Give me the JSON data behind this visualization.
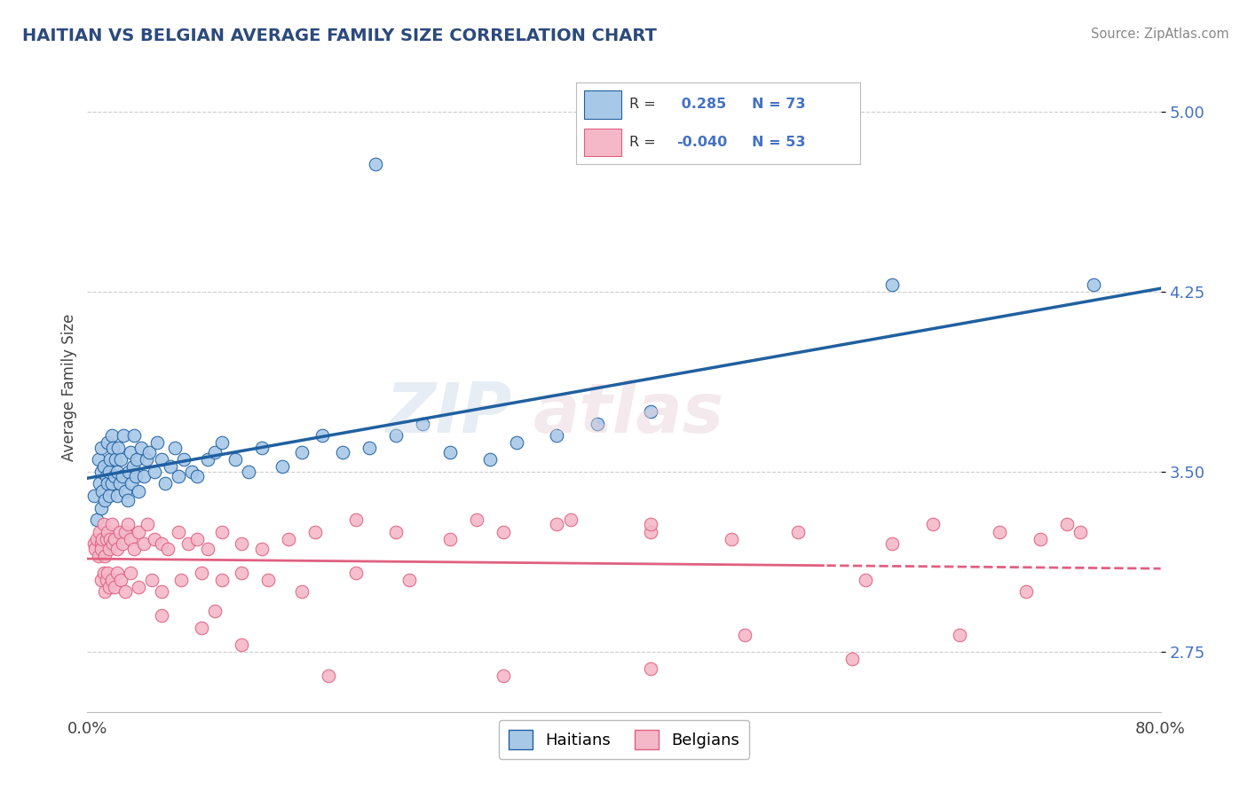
{
  "title": "HAITIAN VS BELGIAN AVERAGE FAMILY SIZE CORRELATION CHART",
  "source": "Source: ZipAtlas.com",
  "ylabel": "Average Family Size",
  "xlim": [
    0.0,
    0.8
  ],
  "ylim": [
    2.5,
    5.2
  ],
  "yticks": [
    2.75,
    3.5,
    4.25,
    5.0
  ],
  "blue_color": "#a8c8e8",
  "pink_color": "#f4b8c8",
  "blue_line_color": "#2060a0",
  "pink_line_color": "#e06080",
  "label_color": "#4472c4",
  "r_blue": 0.285,
  "n_blue": 73,
  "r_pink": -0.04,
  "n_pink": 53,
  "legend_labels": [
    "Haitians",
    "Belgians"
  ],
  "haitian_x": [
    0.005,
    0.007,
    0.008,
    0.009,
    0.01,
    0.01,
    0.01,
    0.011,
    0.012,
    0.013,
    0.014,
    0.015,
    0.015,
    0.016,
    0.016,
    0.017,
    0.018,
    0.018,
    0.019,
    0.02,
    0.021,
    0.022,
    0.022,
    0.023,
    0.024,
    0.025,
    0.026,
    0.027,
    0.028,
    0.03,
    0.031,
    0.032,
    0.033,
    0.034,
    0.035,
    0.036,
    0.037,
    0.038,
    0.04,
    0.042,
    0.044,
    0.046,
    0.05,
    0.052,
    0.055,
    0.058,
    0.062,
    0.065,
    0.068,
    0.072,
    0.078,
    0.082,
    0.09,
    0.095,
    0.1,
    0.11,
    0.12,
    0.13,
    0.145,
    0.16,
    0.175,
    0.19,
    0.21,
    0.23,
    0.25,
    0.27,
    0.3,
    0.32,
    0.35,
    0.38,
    0.42,
    0.6,
    0.75
  ],
  "haitian_y": [
    3.4,
    3.3,
    3.55,
    3.45,
    3.5,
    3.6,
    3.35,
    3.42,
    3.52,
    3.38,
    3.48,
    3.45,
    3.62,
    3.5,
    3.4,
    3.55,
    3.65,
    3.45,
    3.6,
    3.48,
    3.55,
    3.4,
    3.5,
    3.6,
    3.45,
    3.55,
    3.48,
    3.65,
    3.42,
    3.38,
    3.5,
    3.58,
    3.45,
    3.52,
    3.65,
    3.48,
    3.55,
    3.42,
    3.6,
    3.48,
    3.55,
    3.58,
    3.5,
    3.62,
    3.55,
    3.45,
    3.52,
    3.6,
    3.48,
    3.55,
    3.5,
    3.48,
    3.55,
    3.58,
    3.62,
    3.55,
    3.5,
    3.6,
    3.52,
    3.58,
    3.65,
    3.58,
    3.6,
    3.65,
    3.7,
    3.58,
    3.55,
    3.62,
    3.65,
    3.7,
    3.75,
    4.28,
    4.28
  ],
  "haitian_outlier_x": [
    0.215
  ],
  "haitian_outlier_y": [
    4.78
  ],
  "belgian_x": [
    0.005,
    0.006,
    0.007,
    0.008,
    0.009,
    0.01,
    0.01,
    0.011,
    0.012,
    0.013,
    0.014,
    0.015,
    0.016,
    0.017,
    0.018,
    0.019,
    0.02,
    0.022,
    0.024,
    0.026,
    0.028,
    0.03,
    0.032,
    0.035,
    0.038,
    0.042,
    0.045,
    0.05,
    0.055,
    0.06,
    0.068,
    0.075,
    0.082,
    0.09,
    0.1,
    0.115,
    0.13,
    0.15,
    0.17,
    0.2,
    0.23,
    0.27,
    0.31,
    0.36,
    0.42,
    0.48,
    0.53,
    0.6,
    0.63,
    0.68,
    0.71,
    0.73,
    0.74
  ],
  "belgian_y": [
    3.2,
    3.18,
    3.22,
    3.15,
    3.25,
    3.2,
    3.18,
    3.22,
    3.28,
    3.15,
    3.22,
    3.25,
    3.18,
    3.22,
    3.28,
    3.2,
    3.22,
    3.18,
    3.25,
    3.2,
    3.25,
    3.28,
    3.22,
    3.18,
    3.25,
    3.2,
    3.28,
    3.22,
    3.2,
    3.18,
    3.25,
    3.2,
    3.22,
    3.18,
    3.25,
    3.2,
    3.18,
    3.22,
    3.25,
    3.3,
    3.25,
    3.22,
    3.25,
    3.3,
    3.25,
    3.22,
    3.25,
    3.2,
    3.28,
    3.25,
    3.22,
    3.28,
    3.25
  ],
  "belgian_low_x": [
    0.01,
    0.012,
    0.013,
    0.014,
    0.015,
    0.016,
    0.018,
    0.02,
    0.022,
    0.025,
    0.028,
    0.032,
    0.038,
    0.048,
    0.055,
    0.07,
    0.085,
    0.1,
    0.115,
    0.135,
    0.16,
    0.2,
    0.24,
    0.29,
    0.35,
    0.42,
    0.49,
    0.58,
    0.65,
    0.7
  ],
  "belgian_low_y": [
    3.05,
    3.08,
    3.0,
    3.05,
    3.08,
    3.02,
    3.05,
    3.02,
    3.08,
    3.05,
    3.0,
    3.08,
    3.02,
    3.05,
    3.0,
    3.05,
    3.08,
    3.05,
    3.08,
    3.05,
    3.0,
    3.08,
    3.05,
    3.3,
    3.28,
    3.28,
    2.82,
    3.05,
    2.82,
    3.0
  ],
  "belgian_very_low_x": [
    0.055,
    0.085,
    0.095,
    0.115,
    0.18,
    0.31,
    0.42,
    0.57
  ],
  "belgian_very_low_y": [
    2.9,
    2.85,
    2.92,
    2.78,
    2.65,
    2.65,
    2.68,
    2.72
  ]
}
